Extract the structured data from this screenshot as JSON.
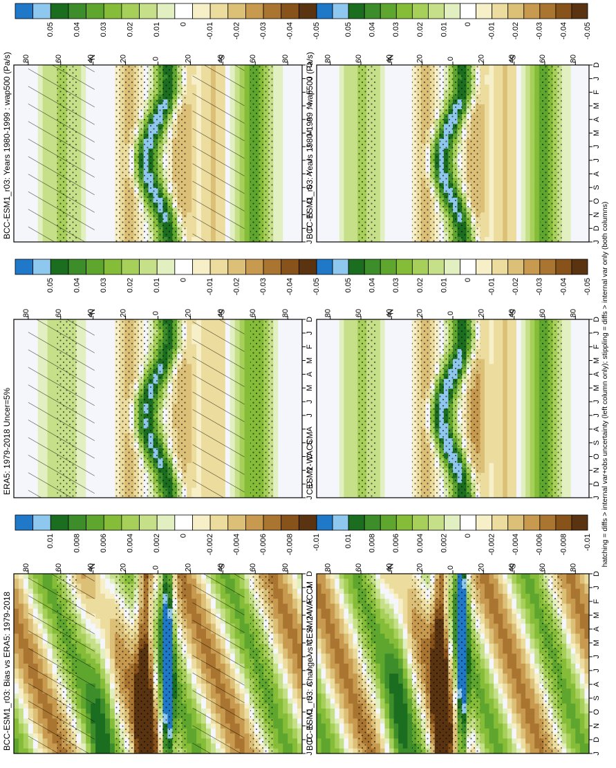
{
  "footnote": "hatching = diffs > internal var+obs uncertainty (left column only); stippling = diffs > internal var only (both columns)",
  "colors": {
    "blue": [
      "#1f78c8",
      "#8fc8ee"
    ],
    "green": [
      "#1b6e20",
      "#3d8d2a",
      "#5fa62f",
      "#85bd39",
      "#a7d05a",
      "#c6e08a",
      "#e2efc0"
    ],
    "white": "#ffffff",
    "white_tint": "#f4f6fb",
    "brown": [
      "#f6efc8",
      "#ecdd9e",
      "#dcc077",
      "#c79a4f",
      "#a97530",
      "#87531a",
      "#5a3310"
    ]
  },
  "chart_data": [
    {
      "type": "heatmap",
      "title": "BCC-ESM1_r03: Years 1980-1999 : wap500 (Pa/s)",
      "x_ticks": [
        "D",
        "J",
        "F",
        "M",
        "A",
        "M",
        "J",
        "J",
        "A",
        "S",
        "O",
        "N",
        "D",
        "J"
      ],
      "y_ticks": [
        "80",
        "60",
        "40",
        "20",
        "0",
        "20",
        "40",
        "60",
        "80"
      ],
      "y_hemi_labels": [
        "°N",
        "°S"
      ],
      "colorbar_labels": [
        "0.05",
        "0.04",
        "0.03",
        "0.02",
        "0.01",
        "0",
        "-0.01",
        "-0.02",
        "-0.03",
        "-0.04",
        "-0.05"
      ],
      "hatching": true,
      "stippling": true
    },
    {
      "type": "heatmap",
      "title": "BCC-ESM1_r03: Years 1980-1999 : wap500 (Pa/s)",
      "x_ticks": [
        "D",
        "J",
        "F",
        "M",
        "A",
        "M",
        "J",
        "J",
        "A",
        "S",
        "O",
        "N",
        "D",
        "J"
      ],
      "y_ticks": [
        "80",
        "60",
        "40",
        "20",
        "0",
        "20",
        "40",
        "60",
        "80"
      ],
      "y_hemi_labels": [
        "°N",
        "°S"
      ],
      "colorbar_labels": [
        "0.05",
        "0.04",
        "0.03",
        "0.02",
        "0.01",
        "0",
        "-0.01",
        "-0.02",
        "-0.03",
        "-0.04",
        "-0.05"
      ],
      "hatching": false,
      "stippling": true
    },
    {
      "type": "heatmap",
      "title": "ERA5: 1979-2018 Uncer=5%",
      "x_ticks": [
        "D",
        "J",
        "F",
        "M",
        "A",
        "M",
        "J",
        "J",
        "A",
        "S",
        "O",
        "N",
        "D",
        "J"
      ],
      "y_ticks": [
        "80",
        "60",
        "40",
        "20",
        "0",
        "20",
        "40",
        "60",
        "80"
      ],
      "y_hemi_labels": [
        "°N",
        "°S"
      ],
      "colorbar_labels": [
        "0.05",
        "0.04",
        "0.03",
        "0.02",
        "0.01",
        "0",
        "-0.01",
        "-0.02",
        "-0.03",
        "-0.04",
        "-0.05"
      ],
      "hatching": true,
      "stippling": true
    },
    {
      "type": "heatmap",
      "title": "CESM2-WACCM",
      "x_ticks": [
        "D",
        "J",
        "F",
        "M",
        "A",
        "M",
        "J",
        "J",
        "A",
        "S",
        "O",
        "N",
        "D",
        "J"
      ],
      "y_ticks": [
        "80",
        "60",
        "40",
        "20",
        "0",
        "20",
        "40",
        "60",
        "80"
      ],
      "y_hemi_labels": [
        "°N",
        "°S"
      ],
      "colorbar_labels": [
        "0.05",
        "0.04",
        "0.03",
        "0.02",
        "0.01",
        "0",
        "-0.01",
        "-0.02",
        "-0.03",
        "-0.04",
        "-0.05"
      ],
      "hatching": false,
      "stippling": true
    },
    {
      "type": "heatmap",
      "title": "BCC-ESM1_r03: Bias vs ERA5: 1979-2018",
      "x_ticks": [
        "D",
        "J",
        "F",
        "M",
        "A",
        "M",
        "J",
        "J",
        "A",
        "S",
        "O",
        "N",
        "D",
        "J"
      ],
      "y_ticks": [
        "80",
        "60",
        "40",
        "20",
        "0",
        "20",
        "40",
        "60",
        "80"
      ],
      "y_hemi_labels": [
        "°N",
        "°S"
      ],
      "colorbar_labels": [
        "0.01",
        "0.008",
        "0.006",
        "0.004",
        "0.002",
        "0",
        "-0.002",
        "-0.004",
        "-0.006",
        "-0.008",
        "-0.01"
      ],
      "hatching": true,
      "stippling": true
    },
    {
      "type": "heatmap",
      "title": "BCC-ESM1_r03: Change vs CESM2-WACCM",
      "x_ticks": [
        "D",
        "J",
        "F",
        "M",
        "A",
        "M",
        "J",
        "J",
        "A",
        "S",
        "O",
        "N",
        "D",
        "J"
      ],
      "y_ticks": [
        "80",
        "60",
        "40",
        "20",
        "0",
        "20",
        "40",
        "60",
        "80"
      ],
      "y_hemi_labels": [
        "°N",
        "°S"
      ],
      "colorbar_labels": [
        "0.01",
        "0.008",
        "0.006",
        "0.004",
        "0.002",
        "0",
        "-0.002",
        "-0.004",
        "-0.006",
        "-0.008",
        "-0.01"
      ],
      "hatching": false,
      "stippling": true
    }
  ]
}
